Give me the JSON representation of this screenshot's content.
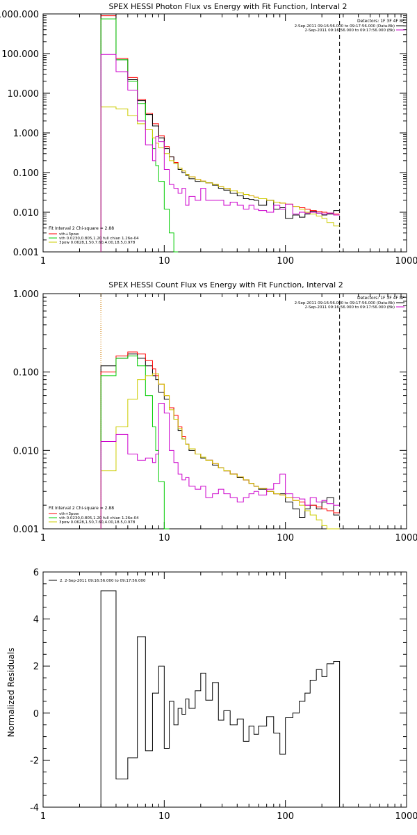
{
  "colors": {
    "black": "#000000",
    "red": "#ff0000",
    "green": "#00cc00",
    "magenta": "#cc00cc",
    "yellow": "#cccc00",
    "orange": "#ff9900"
  },
  "chart_data": [
    {
      "type": "line",
      "step": true,
      "title": "SPEX HESSI Photon Flux vs Energy with Fit Function, Interval 2",
      "xscale": "log",
      "yscale": "log",
      "xlim": [
        1,
        1000
      ],
      "ylim": [
        0.001,
        1000
      ],
      "x_ticks": [
        "1",
        "10",
        "100",
        "1000"
      ],
      "y_ticks": [
        "0.001",
        "0.010",
        "0.100",
        "1.000",
        "10.000",
        "100.000",
        "1000.000"
      ],
      "edges": [
        3,
        3.5,
        4,
        4.5,
        5,
        5.5,
        6,
        6.5,
        7,
        7.5,
        8,
        8.5,
        9,
        10,
        11,
        12,
        13,
        14,
        15,
        16,
        18,
        20,
        22,
        25,
        28,
        31,
        35,
        40,
        45,
        50,
        55,
        60,
        70,
        80,
        90,
        100,
        115,
        130,
        145,
        160,
        180,
        200,
        220,
        250,
        280
      ],
      "series": [
        {
          "name": "vth+3pow",
          "color": "#ff0000",
          "values": [
            900,
            900,
            75,
            75,
            25,
            25,
            7,
            7,
            3.1,
            3.1,
            1.7,
            1.7,
            0.85,
            0.45,
            0.25,
            0.18,
            0.13,
            0.11,
            0.09,
            0.078,
            0.067,
            0.061,
            0.055,
            0.05,
            0.044,
            0.04,
            0.035,
            0.031,
            0.028,
            0.026,
            0.024,
            0.022,
            0.02,
            0.018,
            0.017,
            0.016,
            0.014,
            0.013,
            0.012,
            0.011,
            0.0105,
            0.01,
            0.0095,
            0.009
          ]
        },
        {
          "name": "Data",
          "color": "#000000",
          "values": [
            1000,
            1000,
            70,
            70,
            22,
            22,
            6.5,
            6.5,
            2.9,
            2.9,
            1.5,
            1.5,
            0.75,
            0.4,
            0.25,
            0.17,
            0.12,
            0.1,
            0.085,
            0.07,
            0.06,
            0.06,
            0.055,
            0.048,
            0.04,
            0.036,
            0.03,
            0.026,
            0.022,
            0.021,
            0.02,
            0.015,
            0.02,
            0.012,
            0.013,
            0.007,
            0.0085,
            0.0075,
            0.009,
            0.0105,
            0.0095,
            0.0085,
            0.009,
            0.011
          ]
        },
        {
          "name": "vth 0.0230,0.805,1.20 full chian 1.26e-04",
          "color": "#00cc00",
          "values": [
            750,
            750,
            70,
            70,
            20,
            20,
            5.5,
            5.5,
            1.2,
            1.2,
            0.4,
            0.15,
            0.06,
            0.012,
            0.003,
            0.001
          ]
        },
        {
          "name": "3pow 0.0628,1.50,7.60,4.00,18.5,0.978",
          "color": "#cccc00",
          "values": [
            4.5,
            4.5,
            4.0,
            4.0,
            2.7,
            2.7,
            1.7,
            1.7,
            1.2,
            1.2,
            0.75,
            0.55,
            0.42,
            0.3,
            0.2,
            0.17,
            0.13,
            0.11,
            0.09,
            0.078,
            0.067,
            0.061,
            0.055,
            0.05,
            0.044,
            0.04,
            0.035,
            0.031,
            0.028,
            0.026,
            0.024,
            0.022,
            0.02,
            0.018,
            0.017,
            0.016,
            0.014,
            0.012,
            0.01,
            0.009,
            0.008,
            0.007,
            0.0055,
            0.0045
          ]
        },
        {
          "name": "2-Sep-2011 09:16:56.000 to 09:17:56.000 (BK)",
          "color": "#cc00cc",
          "values": [
            95,
            95,
            35,
            35,
            12,
            12,
            2.0,
            2.0,
            0.5,
            0.5,
            0.2,
            0.8,
            0.6,
            0.12,
            0.05,
            0.04,
            0.03,
            0.04,
            0.015,
            0.025,
            0.02,
            0.04,
            0.02,
            0.02,
            0.02,
            0.015,
            0.018,
            0.015,
            0.012,
            0.015,
            0.012,
            0.011,
            0.01,
            0.015,
            0.012,
            0.016,
            0.009,
            0.01,
            0.0095,
            0.01,
            0.0095,
            0.009,
            0.0095,
            0.0085
          ]
        }
      ],
      "vlines": [
        {
          "x": 3,
          "style": "dotted",
          "color": "#ff9900"
        },
        {
          "x": 280,
          "style": "dashed",
          "color": "#000000"
        }
      ],
      "legend_top": {
        "header": "Detectors: 1F 3F 4F 8F",
        "entries": [
          {
            "text": "2-Sep-2011 09:16:56.000 to 09:17:56.000 (Data-Bk)",
            "color": "#000000"
          },
          {
            "text": "2-Sep-2011 09:16:56.000 to 09:17:56.000 (Bk)",
            "color": "#cc00cc"
          }
        ]
      },
      "legend_bottom": {
        "header": "Fit Interval 2   Chi-square = 2.88",
        "entries": [
          {
            "text": "vth+3pow",
            "color": "#ff0000"
          },
          {
            "text": "vth 0.0230,0.805,1.20  full chian 1.26e-04",
            "color": "#00cc00"
          },
          {
            "text": "3pow 0.0628,1.50,7.60,4.00,18.5,0.978",
            "color": "#cccc00"
          }
        ]
      }
    },
    {
      "type": "line",
      "step": true,
      "title": "SPEX HESSI Count Flux vs Energy with Fit Function, Interval 2",
      "xscale": "log",
      "yscale": "log",
      "xlim": [
        1,
        1000
      ],
      "ylim": [
        0.001,
        1
      ],
      "x_ticks": [
        "1",
        "10",
        "100",
        "1000"
      ],
      "y_ticks": [
        "0.001",
        "0.010",
        "0.100",
        "1.000"
      ],
      "edges": [
        3,
        3.5,
        4,
        4.5,
        5,
        5.5,
        6,
        6.5,
        7,
        7.5,
        8,
        8.5,
        9,
        10,
        11,
        12,
        13,
        14,
        15,
        16,
        18,
        20,
        22,
        25,
        28,
        31,
        35,
        40,
        45,
        50,
        55,
        60,
        70,
        80,
        90,
        100,
        115,
        130,
        145,
        160,
        180,
        200,
        220,
        250,
        280
      ],
      "series": [
        {
          "name": "Data",
          "color": "#000000",
          "values": [
            0.12,
            0.12,
            0.15,
            0.15,
            0.17,
            0.17,
            0.15,
            0.15,
            0.12,
            0.12,
            0.09,
            0.08,
            0.055,
            0.045,
            0.035,
            0.025,
            0.018,
            0.014,
            0.012,
            0.01,
            0.009,
            0.008,
            0.0075,
            0.0065,
            0.006,
            0.0055,
            0.005,
            0.0045,
            0.0042,
            0.0038,
            0.0035,
            0.0032,
            0.003,
            0.0028,
            0.0028,
            0.0022,
            0.0018,
            0.0014,
            0.0018,
            0.002,
            0.0018,
            0.0022,
            0.0025,
            0.0015
          ]
        },
        {
          "name": "vth+3pow",
          "color": "#ff0000",
          "values": [
            0.1,
            0.1,
            0.16,
            0.16,
            0.18,
            0.18,
            0.17,
            0.17,
            0.14,
            0.14,
            0.11,
            0.09,
            0.07,
            0.05,
            0.035,
            0.028,
            0.02,
            0.015,
            0.012,
            0.0105,
            0.009,
            0.0082,
            0.0075,
            0.0068,
            0.006,
            0.0055,
            0.005,
            0.0046,
            0.0042,
            0.0038,
            0.0035,
            0.0033,
            0.003,
            0.0028,
            0.0027,
            0.0025,
            0.0023,
            0.0022,
            0.002,
            0.002,
            0.0019,
            0.0018,
            0.0017,
            0.0016
          ]
        },
        {
          "name": "vth 0.0230,0.805,1.20 full chian 1.26e-04",
          "color": "#00cc00",
          "values": [
            0.09,
            0.09,
            0.15,
            0.15,
            0.16,
            0.16,
            0.12,
            0.12,
            0.05,
            0.05,
            0.02,
            0.01,
            0.004,
            0.001
          ]
        },
        {
          "name": "3pow 0.0628,1.50,7.60,4.00,18.5,0.978",
          "color": "#cccc00",
          "values": [
            0.0055,
            0.0055,
            0.02,
            0.02,
            0.045,
            0.045,
            0.08,
            0.08,
            0.09,
            0.09,
            0.095,
            0.095,
            0.07,
            0.05,
            0.033,
            0.025,
            0.019,
            0.014,
            0.012,
            0.0105,
            0.009,
            0.0082,
            0.0075,
            0.0068,
            0.006,
            0.0055,
            0.005,
            0.0046,
            0.0042,
            0.0038,
            0.0035,
            0.0033,
            0.003,
            0.0028,
            0.0027,
            0.0025,
            0.0023,
            0.002,
            0.0017,
            0.0015,
            0.0013,
            0.0011,
            0.001,
            0.001
          ]
        },
        {
          "name": "2-Sep-2011 09:16:56.000 to 09:17:56.000 (BK)",
          "color": "#cc00cc",
          "values": [
            0.013,
            0.013,
            0.016,
            0.016,
            0.009,
            0.009,
            0.0075,
            0.0075,
            0.008,
            0.008,
            0.007,
            0.009,
            0.04,
            0.03,
            0.01,
            0.007,
            0.005,
            0.0042,
            0.0045,
            0.0035,
            0.0032,
            0.0035,
            0.0025,
            0.0028,
            0.0032,
            0.0028,
            0.0025,
            0.0022,
            0.0025,
            0.0028,
            0.003,
            0.0027,
            0.0032,
            0.0038,
            0.005,
            0.0028,
            0.0025,
            0.0024,
            0.002,
            0.0025,
            0.0022,
            0.0023,
            0.0021,
            0.002
          ]
        }
      ],
      "vlines": [
        {
          "x": 3,
          "style": "dotted",
          "color": "#000000"
        },
        {
          "x": 3,
          "style": "dotted",
          "color": "#ff9900"
        },
        {
          "x": 280,
          "style": "dashed",
          "color": "#000000"
        }
      ],
      "legend_top": {
        "header": "Detectors: 1F 3F 4F 8F",
        "entries": [
          {
            "text": "2-Sep-2011 09:16:56.000 to 09:17:56.000 (Data-Bk)",
            "color": "#000000"
          },
          {
            "text": "2-Sep-2011 09:16:56.000 to 09:17:56.000 (Bk)",
            "color": "#cc00cc"
          }
        ]
      },
      "legend_bottom": {
        "header": "Fit Interval 2   Chi-square = 2.88",
        "entries": [
          {
            "text": "vth+3pow",
            "color": "#ff0000"
          },
          {
            "text": "vth 0.0230,0.805,1.20  full chian 1.26e-04",
            "color": "#00cc00"
          },
          {
            "text": "3pow 0.0628,1.50,7.60,4.00,18.5,0.978",
            "color": "#cccc00"
          }
        ]
      }
    },
    {
      "type": "line",
      "step": true,
      "title": "",
      "xscale": "log",
      "yscale": "linear",
      "xlim": [
        1,
        1000
      ],
      "ylim": [
        -4,
        6
      ],
      "ylabel": "Normalized Residuals",
      "x_ticks": [
        "1",
        "10",
        "100",
        "1000"
      ],
      "y_ticks": [
        "-4",
        "-2",
        "0",
        "2",
        "4",
        "6"
      ],
      "edges": [
        3,
        4,
        5,
        6,
        7,
        8,
        9,
        10,
        11,
        12,
        13,
        14,
        15,
        16,
        18,
        20,
        22,
        25,
        28,
        31,
        35,
        40,
        45,
        50,
        55,
        60,
        70,
        80,
        90,
        100,
        115,
        130,
        145,
        160,
        180,
        200,
        220,
        250,
        280
      ],
      "series": [
        {
          "name": "2-Sep-2011 09:16:56.000 to 09:17:56.000",
          "color": "#000000",
          "drop_to_axis": true,
          "values": [
            5.2,
            -2.8,
            -1.9,
            3.25,
            -1.6,
            0.85,
            2.0,
            -1.5,
            0.5,
            -0.5,
            0.2,
            -0.05,
            0.6,
            0.2,
            0.95,
            1.7,
            0.55,
            1.3,
            -0.3,
            0.1,
            -0.5,
            -0.25,
            -1.2,
            -0.55,
            -0.9,
            -0.55,
            -0.15,
            -0.85,
            -1.75,
            -0.2,
            0.0,
            0.5,
            0.85,
            1.4,
            1.85,
            1.55,
            2.1,
            2.2
          ]
        }
      ],
      "legend_top": {
        "header": "",
        "entries": [
          {
            "text": "2.  2-Sep-2011 09:16:56.000 to 09:17:56.000",
            "color": "#000000"
          }
        ]
      }
    }
  ]
}
